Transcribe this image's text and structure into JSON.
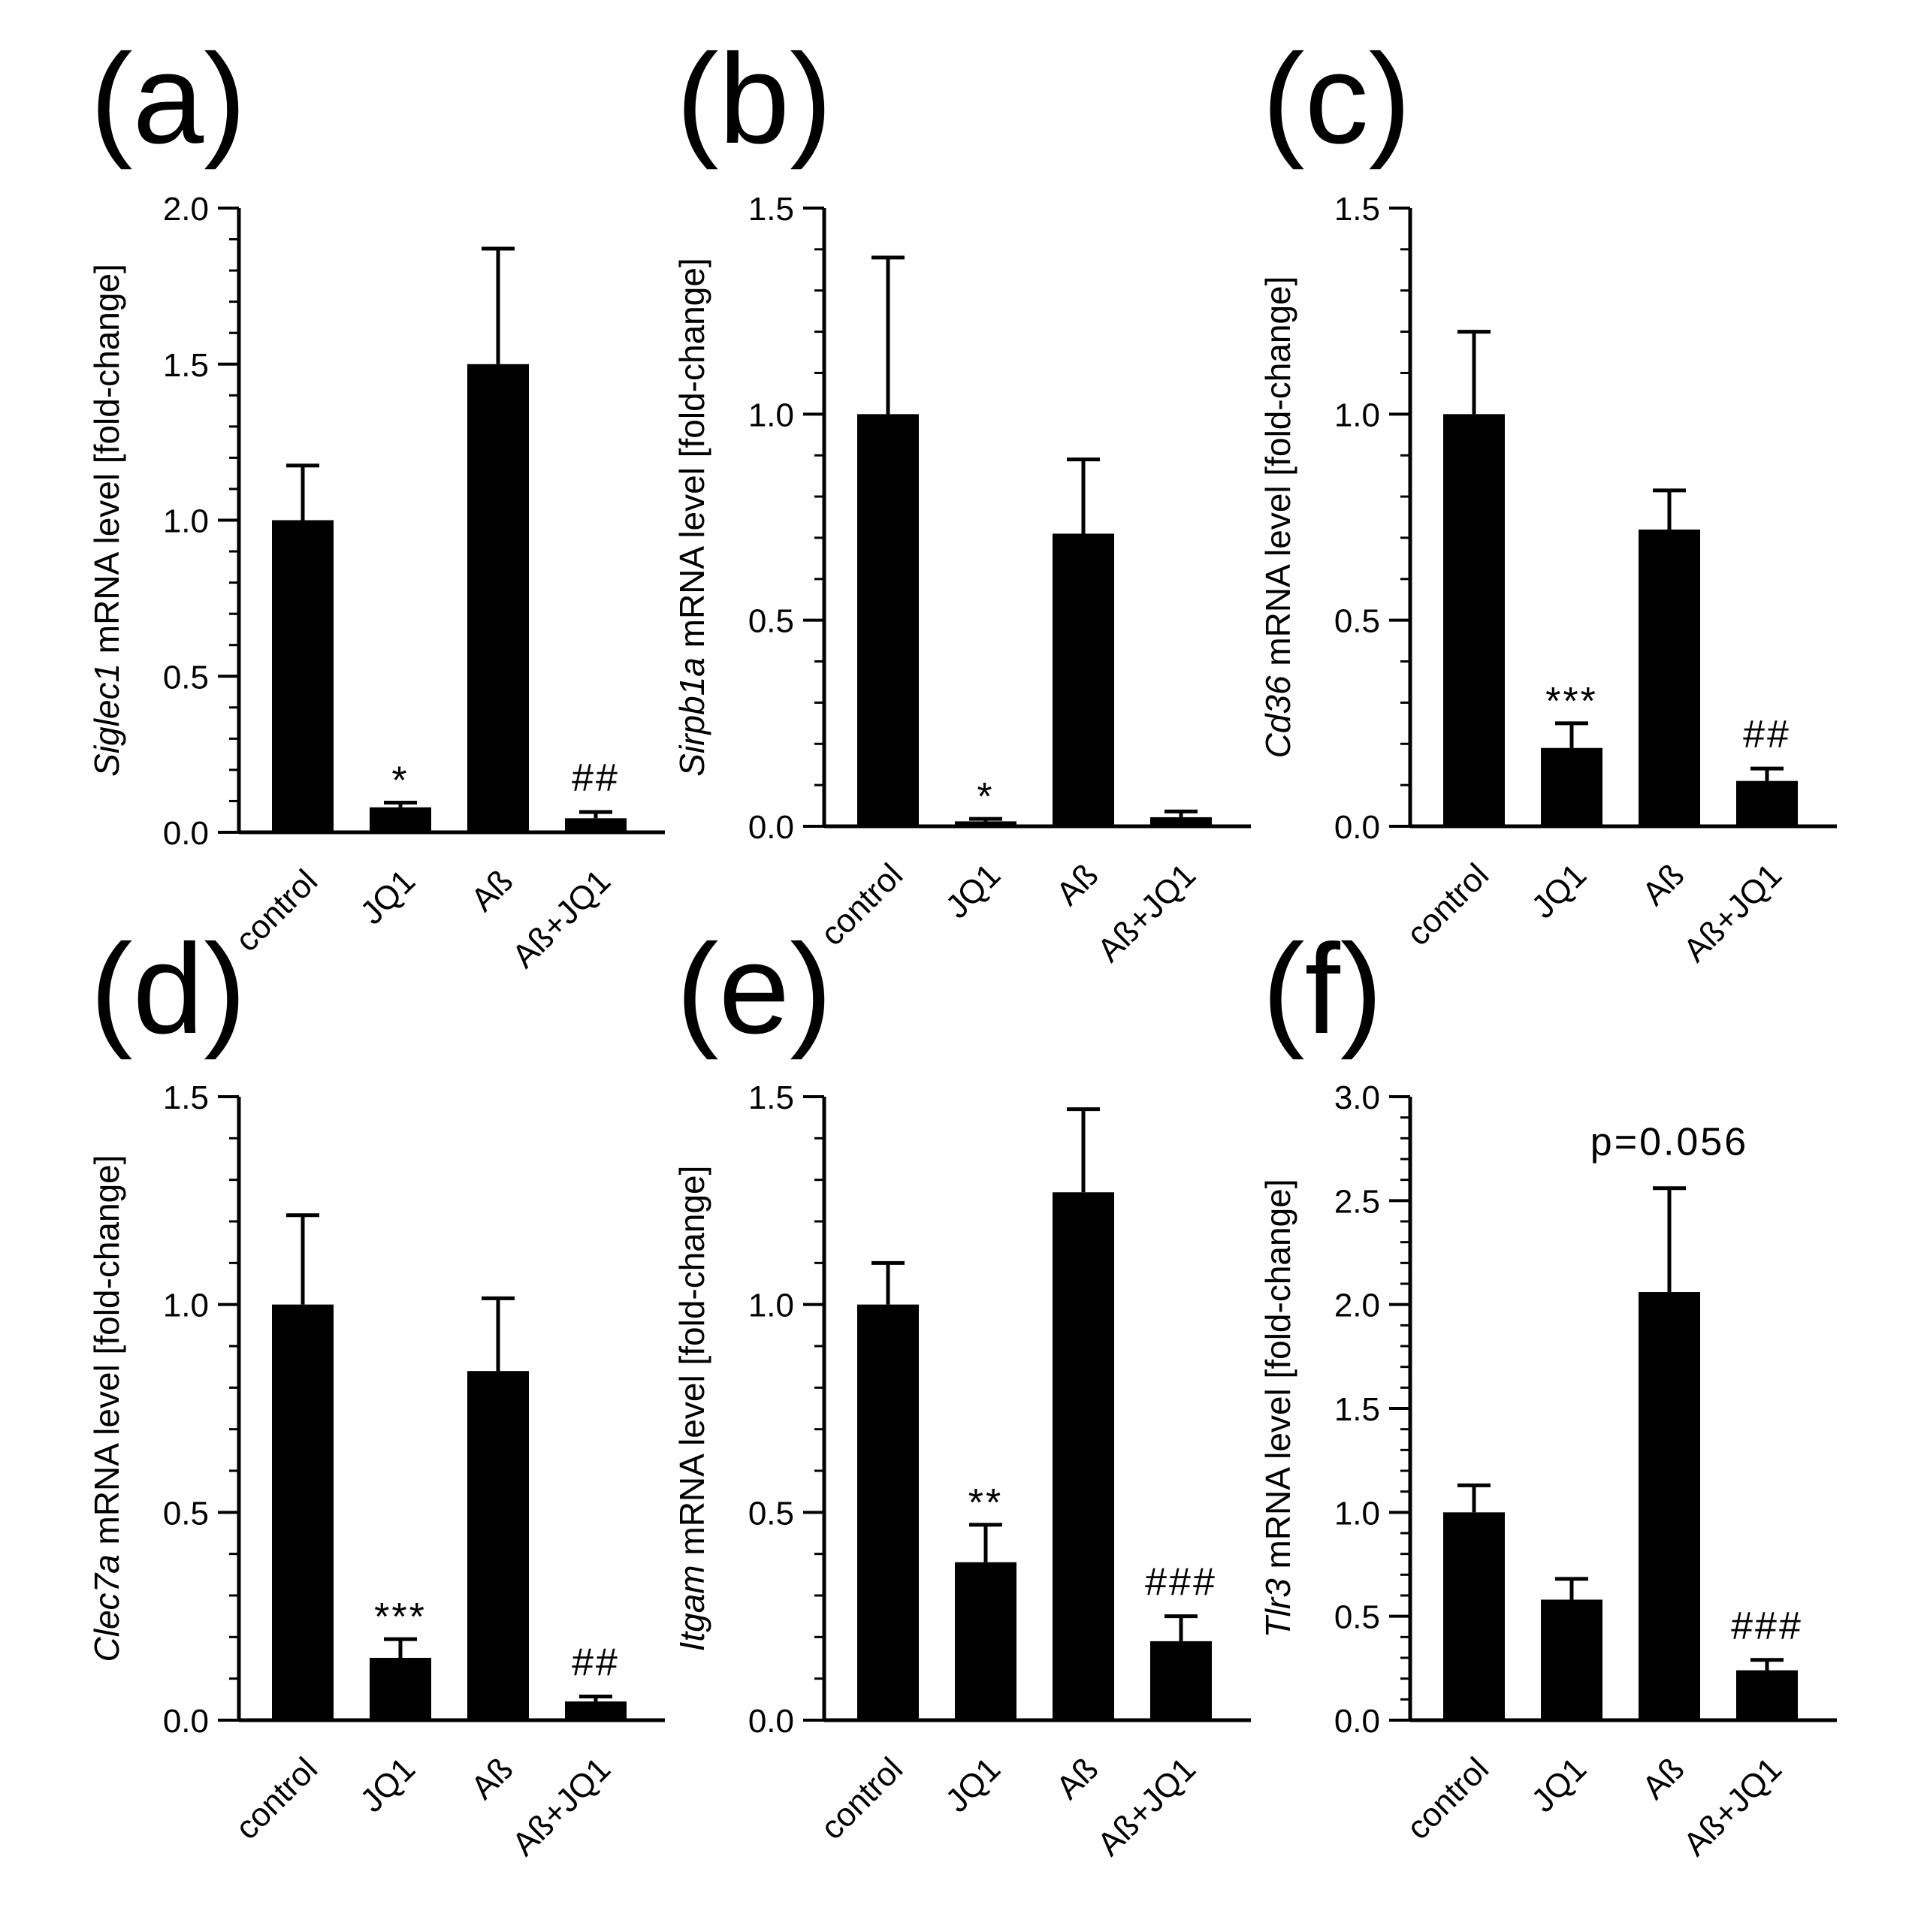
{
  "figure": {
    "categories": [
      "control",
      "JQ1",
      "Aß",
      "Aß+JQ1"
    ],
    "panels": [
      {
        "letter": "(a)",
        "gene": "Siglec1",
        "ylabel_rest": " mRNA level [fold-change]",
        "ylim": [
          0,
          2.0
        ],
        "ticks": [
          "0.0",
          "0.5",
          "1.0",
          "1.5",
          "2.0"
        ],
        "tick_values": [
          0,
          0.5,
          1.0,
          1.5,
          2.0
        ],
        "minor_step": 0.1,
        "values": [
          1.0,
          0.08,
          1.5,
          0.045
        ],
        "errors": [
          0.175,
          0.015,
          0.37,
          0.02
        ],
        "annotations": [
          "",
          "*",
          "",
          "##"
        ],
        "extra_note": ""
      },
      {
        "letter": "(b)",
        "gene": "Sirpb1a",
        "ylabel_rest": " mRNA level [fold-change]",
        "ylim": [
          0,
          1.5
        ],
        "ticks": [
          "0.0",
          "0.5",
          "1.0",
          "1.5"
        ],
        "tick_values": [
          0,
          0.5,
          1.0,
          1.5
        ],
        "minor_step": 0.1,
        "values": [
          1.0,
          0.012,
          0.71,
          0.022
        ],
        "errors": [
          0.38,
          0.006,
          0.18,
          0.014
        ],
        "annotations": [
          "",
          "*",
          "",
          ""
        ],
        "extra_note": ""
      },
      {
        "letter": "(c)",
        "gene": "Cd36",
        "ylabel_rest": " mRNA level [fold-change]",
        "ylim": [
          0,
          1.5
        ],
        "ticks": [
          "0.0",
          "0.5",
          "1.0",
          "1.5"
        ],
        "tick_values": [
          0,
          0.5,
          1.0,
          1.5
        ],
        "minor_step": 0.1,
        "values": [
          1.0,
          0.19,
          0.72,
          0.11
        ],
        "errors": [
          0.2,
          0.06,
          0.095,
          0.03
        ],
        "annotations": [
          "",
          "***",
          "",
          "##"
        ],
        "extra_note": ""
      },
      {
        "letter": "(d)",
        "gene": "Clec7a",
        "ylabel_rest": " mRNA level [fold-change]",
        "ylim": [
          0,
          1.5
        ],
        "ticks": [
          "0.0",
          "0.5",
          "1.0",
          "1.5"
        ],
        "tick_values": [
          0,
          0.5,
          1.0,
          1.5
        ],
        "minor_step": 0.1,
        "values": [
          1.0,
          0.15,
          0.84,
          0.045
        ],
        "errors": [
          0.215,
          0.045,
          0.175,
          0.012
        ],
        "annotations": [
          "",
          "***",
          "",
          "##"
        ],
        "extra_note": ""
      },
      {
        "letter": "(e)",
        "gene": "Itgam",
        "ylabel_rest": " mRNA level [fold-change]",
        "ylim": [
          0,
          1.5
        ],
        "ticks": [
          "0.0",
          "0.5",
          "1.0",
          "1.5"
        ],
        "tick_values": [
          0,
          0.5,
          1.0,
          1.5
        ],
        "minor_step": 0.1,
        "values": [
          1.0,
          0.38,
          1.27,
          0.19
        ],
        "errors": [
          0.1,
          0.09,
          0.2,
          0.06
        ],
        "annotations": [
          "",
          "**",
          "",
          "###"
        ],
        "extra_note": ""
      },
      {
        "letter": "(f)",
        "gene": "Tlr3",
        "ylabel_rest": " mRNA level [fold-change]",
        "ylim": [
          0,
          3.0
        ],
        "ticks": [
          "0.0",
          "0.5",
          "1.0",
          "1.5",
          "2.0",
          "2.5",
          "3.0"
        ],
        "tick_values": [
          0,
          0.5,
          1.0,
          1.5,
          2.0,
          2.5,
          3.0
        ],
        "minor_step": 0.1,
        "values": [
          1.0,
          0.58,
          2.06,
          0.24
        ],
        "errors": [
          0.13,
          0.1,
          0.5,
          0.05
        ],
        "annotations": [
          "",
          "",
          "",
          "###"
        ],
        "extra_note": "p=0.056"
      }
    ]
  },
  "chart_data": [
    {
      "type": "bar",
      "title": "(a)",
      "categories": [
        "control",
        "JQ1",
        "Aß",
        "Aß+JQ1"
      ],
      "values": [
        1.0,
        0.08,
        1.5,
        0.045
      ],
      "errors": [
        0.175,
        0.015,
        0.37,
        0.02
      ],
      "annotations": [
        "",
        "*",
        "",
        "##"
      ],
      "xlabel": "",
      "ylabel": "Siglec1 mRNA level [fold-change]",
      "ylim": [
        0,
        2.0
      ],
      "grid": false
    },
    {
      "type": "bar",
      "title": "(b)",
      "categories": [
        "control",
        "JQ1",
        "Aß",
        "Aß+JQ1"
      ],
      "values": [
        1.0,
        0.012,
        0.71,
        0.022
      ],
      "errors": [
        0.38,
        0.006,
        0.18,
        0.014
      ],
      "annotations": [
        "",
        "*",
        "",
        ""
      ],
      "xlabel": "",
      "ylabel": "Sirpb1a mRNA level [fold-change]",
      "ylim": [
        0,
        1.5
      ],
      "grid": false
    },
    {
      "type": "bar",
      "title": "(c)",
      "categories": [
        "control",
        "JQ1",
        "Aß",
        "Aß+JQ1"
      ],
      "values": [
        1.0,
        0.19,
        0.72,
        0.11
      ],
      "errors": [
        0.2,
        0.06,
        0.095,
        0.03
      ],
      "annotations": [
        "",
        "***",
        "",
        "##"
      ],
      "xlabel": "",
      "ylabel": "Cd36 mRNA level [fold-change]",
      "ylim": [
        0,
        1.5
      ],
      "grid": false
    },
    {
      "type": "bar",
      "title": "(d)",
      "categories": [
        "control",
        "JQ1",
        "Aß",
        "Aß+JQ1"
      ],
      "values": [
        1.0,
        0.15,
        0.84,
        0.045
      ],
      "errors": [
        0.215,
        0.045,
        0.175,
        0.012
      ],
      "annotations": [
        "",
        "***",
        "",
        "##"
      ],
      "xlabel": "",
      "ylabel": "Clec7a mRNA level [fold-change]",
      "ylim": [
        0,
        1.5
      ],
      "grid": false
    },
    {
      "type": "bar",
      "title": "(e)",
      "categories": [
        "control",
        "JQ1",
        "Aß",
        "Aß+JQ1"
      ],
      "values": [
        1.0,
        0.38,
        1.27,
        0.19
      ],
      "errors": [
        0.1,
        0.09,
        0.2,
        0.06
      ],
      "annotations": [
        "",
        "**",
        "",
        "###"
      ],
      "xlabel": "",
      "ylabel": "Itgam mRNA level [fold-change]",
      "ylim": [
        0,
        1.5
      ],
      "grid": false
    },
    {
      "type": "bar",
      "title": "(f)",
      "categories": [
        "control",
        "JQ1",
        "Aß",
        "Aß+JQ1"
      ],
      "values": [
        1.0,
        0.58,
        2.06,
        0.24
      ],
      "errors": [
        0.13,
        0.1,
        0.5,
        0.05
      ],
      "annotations": [
        "",
        "",
        "",
        "###"
      ],
      "extra_annotation": "p=0.056",
      "xlabel": "",
      "ylabel": "Tlr3 mRNA level [fold-change]",
      "ylim": [
        0,
        3.0
      ],
      "grid": false
    }
  ]
}
